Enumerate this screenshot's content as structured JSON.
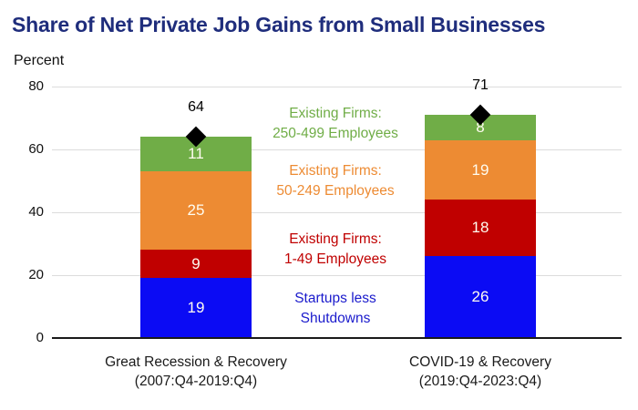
{
  "title": "Share of Net Private Job Gains from Small Businesses",
  "ylabel": "Percent",
  "colors": {
    "title_text": "#1F2D7C",
    "axis_line": "#1A1A1A",
    "gridline": "#DCDCDC",
    "tick_text": "#111111",
    "category_text": "#1A1A1A",
    "segment_label_text": "#FFFCF0",
    "total_marker": "#000000",
    "total_text": "#000000",
    "startups_blue": "#0B0BF4",
    "firms_1_49_red": "#C00000",
    "firms_50_249_orange": "#ED8B33",
    "firms_250_499_green": "#70AD47"
  },
  "chart_data": {
    "type": "bar",
    "stacked": true,
    "title": "Share of Net Private Job Gains from Small Businesses",
    "ylabel": "Percent",
    "ylim": [
      0,
      80
    ],
    "yticks": [
      0,
      20,
      40,
      60,
      80
    ],
    "grid": true,
    "categories": [
      {
        "lines": [
          "Great Recession & Recovery",
          "(2007:Q4-2019:Q4)"
        ]
      },
      {
        "lines": [
          "COVID-19 & Recovery",
          "(2019:Q4-2023:Q4)"
        ]
      }
    ],
    "series": [
      {
        "name": "Startups less Shutdowns",
        "color": "#0B0BF4",
        "values": [
          19,
          26
        ]
      },
      {
        "name": "Existing Firms: 1-49 Employees",
        "color": "#C00000",
        "values": [
          9,
          18
        ]
      },
      {
        "name": "Existing Firms: 50-249 Employees",
        "color": "#ED8B33",
        "values": [
          25,
          19
        ]
      },
      {
        "name": "Existing Firms: 250-499 Employees",
        "color": "#70AD47",
        "values": [
          11,
          8
        ]
      }
    ],
    "totals": {
      "marker": "diamond",
      "values": [
        64,
        71
      ]
    }
  },
  "legend": {
    "items": [
      {
        "lines": [
          "Existing Firms:",
          "250-499 Employees"
        ],
        "color": "#70AD47"
      },
      {
        "lines": [
          "Existing Firms:",
          "50-249 Employees"
        ],
        "color": "#ED8B33"
      },
      {
        "lines": [
          "Existing Firms:",
          "1-49 Employees"
        ],
        "color": "#C00000"
      },
      {
        "lines": [
          "Startups less",
          "Shutdowns"
        ],
        "color": "#1A1ACC"
      }
    ]
  }
}
